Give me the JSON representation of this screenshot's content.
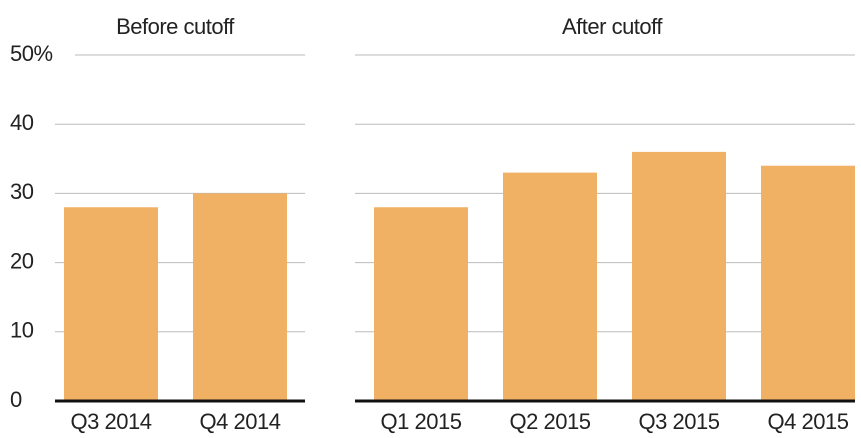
{
  "chart_data": [
    {
      "type": "bar",
      "title": "Before cutoff",
      "categories": [
        "Q3 2014",
        "Q4 2014"
      ],
      "values": [
        28,
        30
      ],
      "color": "#f0b165",
      "ylim": [
        0,
        50
      ],
      "yticks": [
        0,
        10,
        20,
        30,
        40,
        {
          "value": 50,
          "label": "50%"
        }
      ],
      "grid": true
    },
    {
      "type": "bar",
      "title": "After cutoff",
      "categories": [
        "Q1 2015",
        "Q2 2015",
        "Q3 2015",
        "Q4 2015"
      ],
      "values": [
        28,
        33,
        36,
        34
      ],
      "color": "#f0b165",
      "ylim": [
        0,
        50
      ],
      "yticks": [
        0,
        10,
        20,
        30,
        40,
        50
      ],
      "grid": true
    }
  ]
}
